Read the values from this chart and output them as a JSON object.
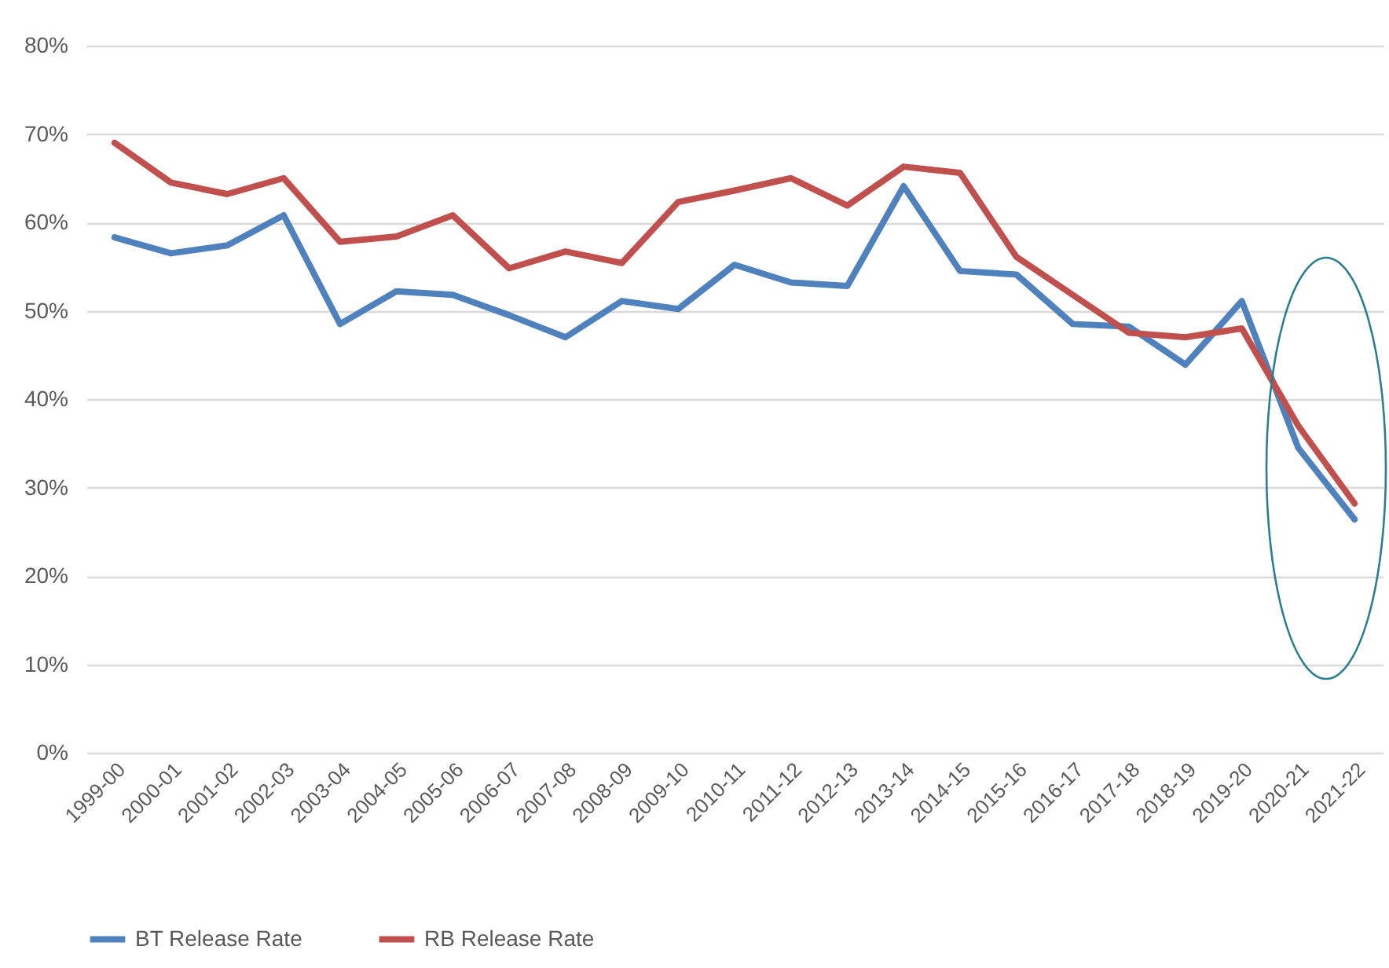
{
  "chart_data": {
    "type": "line",
    "categories": [
      "1999-00",
      "2000-01",
      "2001-02",
      "2002-03",
      "2003-04",
      "2004-05",
      "2005-06",
      "2006-07",
      "2007-08",
      "2008-09",
      "2009-10",
      "2010-11",
      "2011-12",
      "2012-13",
      "2013-14",
      "2014-15",
      "2015-16",
      "2016-17",
      "2017-18",
      "2018-19",
      "2019-20",
      "2020-21",
      "2021-22"
    ],
    "series": [
      {
        "name": "BT Release Rate",
        "color": "#4f81bd",
        "values": [
          0.583,
          0.565,
          0.574,
          0.608,
          0.485,
          0.522,
          0.518,
          0.495,
          0.47,
          0.511,
          0.502,
          0.552,
          0.532,
          0.528,
          0.641,
          0.545,
          0.541,
          0.485,
          0.482,
          0.439,
          0.511,
          0.345,
          0.264
        ]
      },
      {
        "name": "RB Release Rate",
        "color": "#c0504d",
        "values": [
          0.69,
          0.645,
          0.632,
          0.65,
          0.578,
          0.584,
          0.608,
          0.548,
          0.567,
          0.554,
          0.623,
          0.636,
          0.65,
          0.619,
          0.663,
          0.656,
          0.561,
          0.518,
          0.475,
          0.47,
          0.48,
          0.37,
          0.282
        ]
      }
    ],
    "ylim": [
      0,
      0.8
    ],
    "yticks": [
      {
        "value": 0,
        "label": "0%"
      },
      {
        "value": 0.1,
        "label": "10%"
      },
      {
        "value": 0.2,
        "label": "20%"
      },
      {
        "value": 0.3,
        "label": "30%"
      },
      {
        "value": 0.4,
        "label": "40%"
      },
      {
        "value": 0.5,
        "label": "50%"
      },
      {
        "value": 0.6,
        "label": "60%"
      },
      {
        "value": 0.7,
        "label": "70%"
      },
      {
        "value": 0.8,
        "label": "80%"
      }
    ],
    "grid": "y",
    "legend": "bottom",
    "line_style": "solid"
  }
}
